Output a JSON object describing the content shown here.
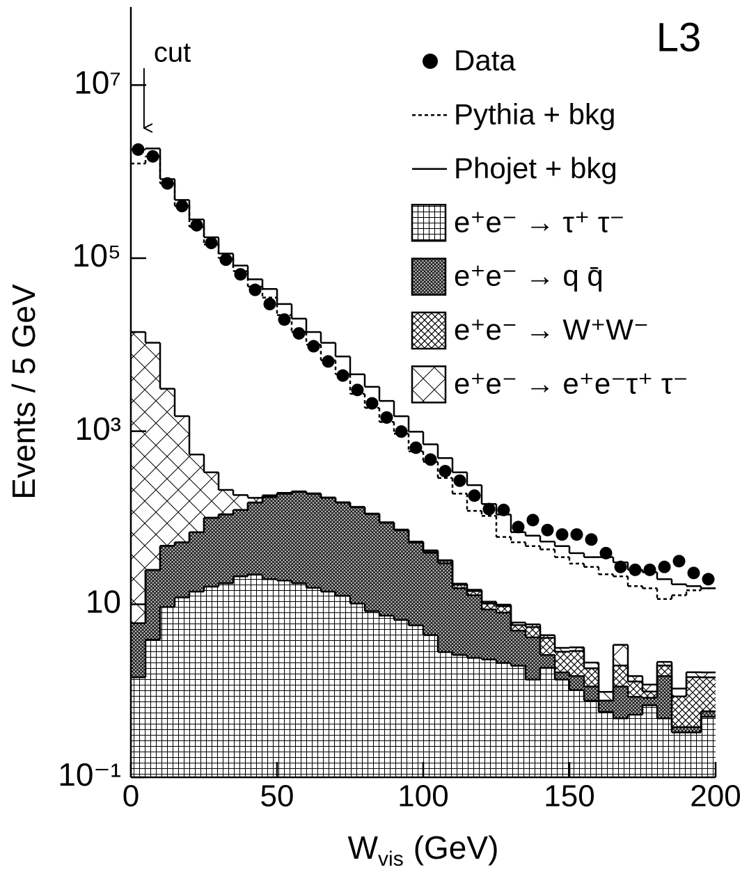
{
  "chart_data": {
    "type": "histogram",
    "experiment": "L3",
    "ylabel": "Events / 5 GeV",
    "xlabel": [
      "W",
      "vis",
      "(GeV)"
    ],
    "yscale": "log",
    "xlim": [
      0,
      200
    ],
    "ylim": [
      0.1,
      80000000
    ],
    "xticks": [
      0,
      50,
      100,
      150,
      200
    ],
    "yticks": [
      {
        "value": 10000000,
        "label": "10⁷"
      },
      {
        "value": 100000,
        "label": "10⁵"
      },
      {
        "value": 1000,
        "label": "10³"
      },
      10,
      {
        "value": 0.1,
        "label": "10⁻¹"
      }
    ],
    "annotations": [
      {
        "text": "cut",
        "x": 4.5
      }
    ],
    "bins": [
      0,
      5,
      10,
      15,
      20,
      25,
      30,
      35,
      40,
      45,
      50,
      55,
      60,
      65,
      70,
      75,
      80,
      85,
      90,
      95,
      100,
      105,
      110,
      115,
      120,
      125,
      130,
      135,
      140,
      145,
      150,
      155,
      160,
      165,
      170,
      175,
      180,
      185,
      190,
      195,
      200
    ],
    "series": [
      {
        "name": "Data",
        "style": "points",
        "color": "#000000",
        "values": [
          1800000,
          1500000,
          730000,
          400000,
          240000,
          150000,
          96000,
          65000,
          43000,
          29500,
          19500,
          13500,
          9600,
          6400,
          4400,
          3000,
          2100,
          1440,
          990,
          645,
          470,
          345,
          268,
          180,
          126,
          123,
          78,
          94,
          72,
          64,
          64,
          56,
          39,
          27,
          25,
          25,
          27,
          31.5,
          23,
          19.5
        ]
      },
      {
        "name": "Pythia + bkg",
        "style": "dashed",
        "color": "#000000",
        "values": [
          1240000,
          1500000,
          730000,
          400000,
          230000,
          144000,
          100000,
          71000,
          47000,
          35000,
          22000,
          14000,
          10000,
          6600,
          4550,
          2700,
          1860,
          1280,
          935,
          585,
          442,
          288,
          190,
          120,
          105,
          60,
          52,
          47,
          43,
          35,
          29.5,
          27,
          22.2,
          21,
          16.2,
          15.3,
          11.5,
          12.7,
          14.5,
          15.3
        ]
      },
      {
        "name": "Phojet + bkg",
        "style": "solid",
        "color": "#000000",
        "values": [
          1800000,
          1850000,
          820000,
          470000,
          280000,
          174000,
          113000,
          82000,
          57000,
          44000,
          29500,
          20000,
          14000,
          10500,
          7300,
          4550,
          3260,
          2240,
          1490,
          986,
          705,
          489,
          335,
          238,
          144,
          109,
          68,
          62,
          53,
          47,
          39,
          35,
          35,
          30.5,
          25,
          23.4,
          19.5,
          17,
          16.2,
          15.3
        ]
      },
      {
        "name": "e⁺e⁻ → τ⁺ τ⁻",
        "style": "stack",
        "pattern": "grid",
        "color": "#000000",
        "values": [
          1.43,
          3.9,
          9.3,
          12,
          14,
          16,
          17.5,
          21,
          22,
          19.5,
          18.8,
          17.5,
          15.5,
          14,
          12.5,
          10.2,
          8.3,
          7.4,
          6.6,
          5.7,
          4.4,
          2.8,
          2.6,
          2.4,
          2.3,
          2.1,
          1.95,
          1.35,
          1.85,
          1.35,
          1.02,
          0.77,
          0.57,
          0.48,
          0.53,
          0.68,
          0.48,
          0.33,
          0.33,
          0.5
        ]
      },
      {
        "name": "e⁺e⁻ → q q̄",
        "style": "stack",
        "pattern": "dense",
        "color": "#000000",
        "values": [
          4.6,
          21,
          38,
          40,
          54,
          84,
          92,
          102,
          128,
          154,
          171,
          182,
          174,
          156,
          137,
          122,
          102,
          80,
          65,
          46,
          35,
          27,
          12.7,
          10.3,
          6.4,
          5.9,
          3,
          2.8,
          0.74,
          0.28,
          0.46,
          0.35,
          0.2,
          0.64,
          0.32,
          0.15,
          1,
          0.05,
          0.05,
          0.08
        ]
      },
      {
        "name": "e⁺e⁻ → W⁺W⁻",
        "style": "stack",
        "pattern": "cross",
        "color": "#000000",
        "values": [
          0,
          0,
          0,
          0,
          0,
          0,
          0,
          0,
          0,
          0,
          0.2,
          0.2,
          0.3,
          0.3,
          0.3,
          0.4,
          0.4,
          0.5,
          0.5,
          0.6,
          2,
          2,
          1.5,
          1.5,
          1.5,
          1.5,
          0.8,
          1.3,
          1.5,
          1.2,
          1.4,
          0.7,
          0,
          0.84,
          0.43,
          0.15,
          0.48,
          0.48,
          1.06,
          0.85
        ]
      },
      {
        "name": "e⁺e⁻ → e⁺e⁻τ⁺ τ⁻",
        "style": "stack",
        "pattern": "wide",
        "color": "#000000",
        "values": [
          14000,
          10500,
          3050,
          1440,
          470,
          235,
          100,
          60,
          20,
          8,
          4,
          2,
          1.5,
          1.2,
          1,
          1,
          1,
          0.8,
          0.8,
          0.7,
          0.6,
          0.5,
          0.5,
          0.5,
          0.5,
          0.4,
          0.4,
          0.4,
          0.3,
          0.3,
          0.3,
          0.3,
          0.2,
          1.44,
          0.2,
          0.2,
          0.2,
          0.2,
          0.2,
          0.2
        ]
      }
    ]
  }
}
